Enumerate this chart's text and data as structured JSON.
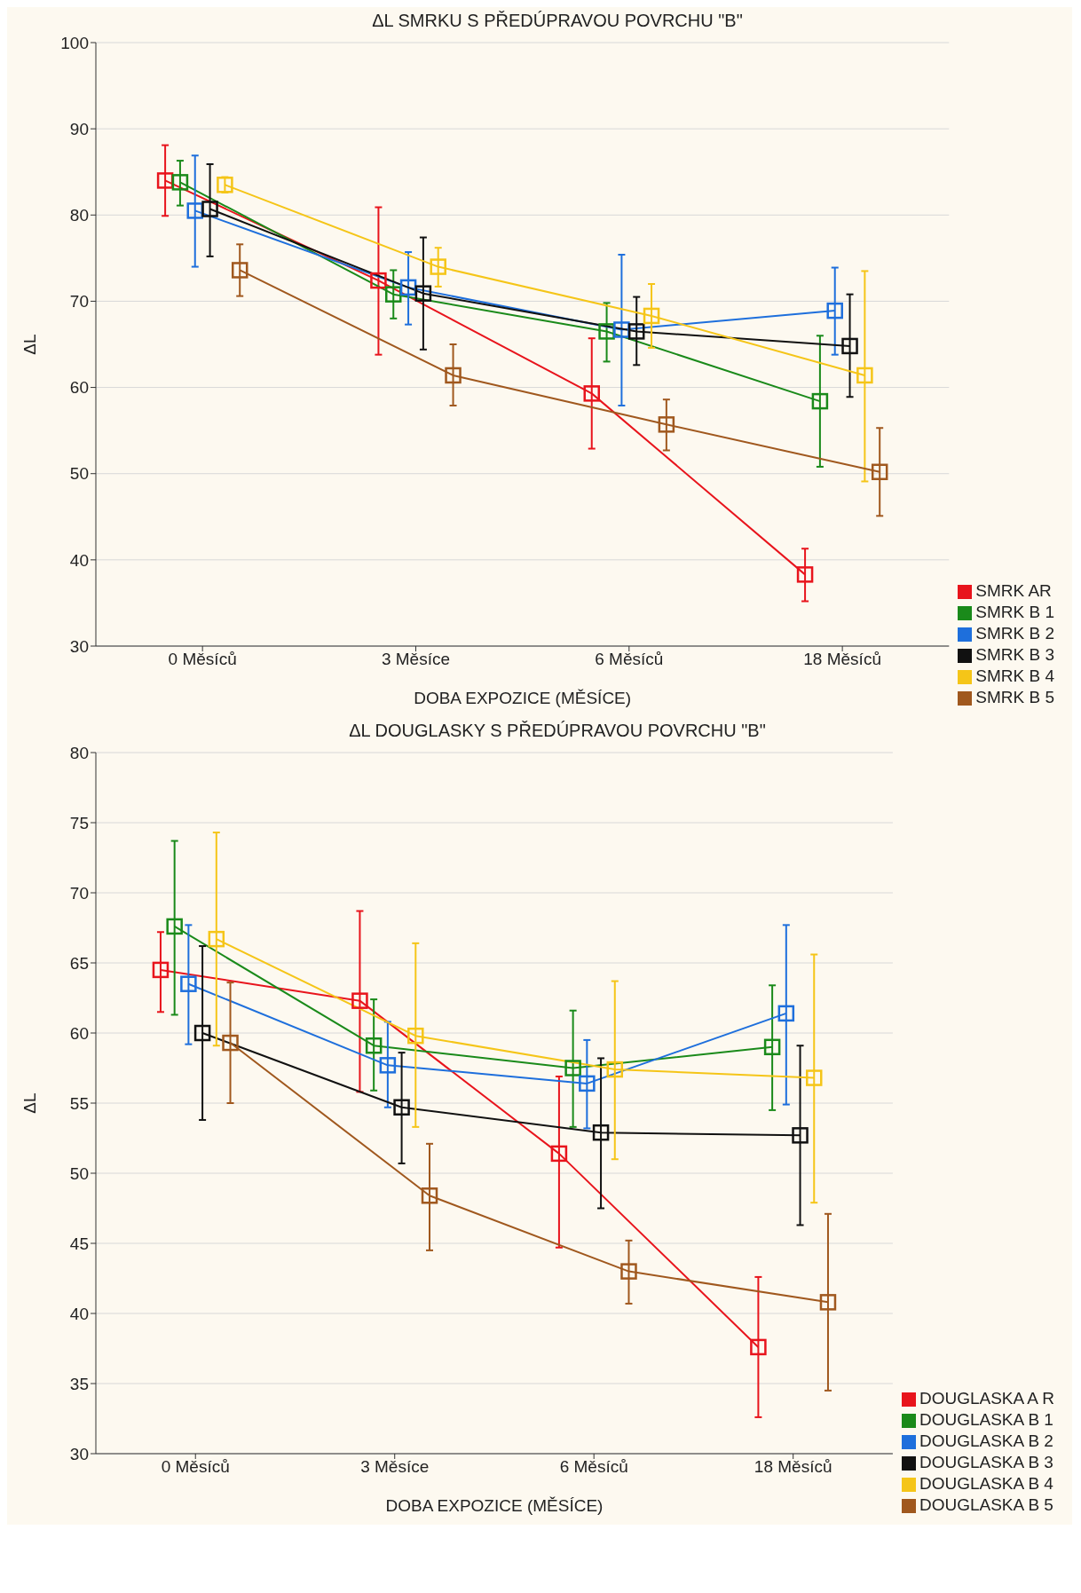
{
  "chart_data": [
    {
      "type": "line",
      "title": "ΔL SMRKU S PŘEDÚPRAVOU POVRCHU \"B\"",
      "xlabel": "DOBA EXPOZICE (MĚSÍCE)",
      "ylabel": "ΔL",
      "categories": [
        "0 Měsíců",
        "3 Měsíce",
        "6 Měsíců",
        "18 Měsíců"
      ],
      "ylim": [
        30,
        100
      ],
      "yticks": [
        30,
        40,
        50,
        60,
        70,
        80,
        90,
        100
      ],
      "grid": "y",
      "legend": "bottom right",
      "marker": "square",
      "series": [
        {
          "name": "SMRK AR",
          "color": "#e8141c",
          "values": [
            84.0,
            72.4,
            59.3,
            38.3
          ],
          "errors": [
            [
              79.9,
              88.1
            ],
            [
              63.8,
              80.9
            ],
            [
              52.9,
              65.7
            ],
            [
              35.2,
              41.3
            ]
          ]
        },
        {
          "name": "SMRK B 1",
          "color": "#1a8a1a",
          "values": [
            83.8,
            70.8,
            66.5,
            58.4
          ],
          "errors": [
            [
              81.1,
              86.3
            ],
            [
              68.0,
              73.6
            ],
            [
              63.0,
              69.8
            ],
            [
              50.8,
              66.0
            ]
          ]
        },
        {
          "name": "SMRK B 2",
          "color": "#1e6fdc",
          "values": [
            80.5,
            71.6,
            66.7,
            68.9
          ],
          "errors": [
            [
              74.0,
              86.9
            ],
            [
              67.3,
              75.7
            ],
            [
              57.9,
              75.4
            ],
            [
              63.8,
              73.9
            ]
          ]
        },
        {
          "name": "SMRK B 3",
          "color": "#111111",
          "values": [
            80.7,
            70.9,
            66.5,
            64.8
          ],
          "errors": [
            [
              75.2,
              85.9
            ],
            [
              64.4,
              77.4
            ],
            [
              62.6,
              70.5
            ],
            [
              58.9,
              70.8
            ]
          ]
        },
        {
          "name": "SMRK B 4",
          "color": "#f5c518",
          "values": [
            83.5,
            74.0,
            68.3,
            61.4
          ],
          "errors": [
            [
              82.6,
              84.4
            ],
            [
              71.7,
              76.2
            ],
            [
              64.6,
              72.0
            ],
            [
              49.1,
              73.5
            ]
          ]
        },
        {
          "name": "SMRK B 5",
          "color": "#a0581e",
          "values": [
            73.6,
            61.4,
            55.7,
            50.2
          ],
          "errors": [
            [
              70.6,
              76.6
            ],
            [
              57.9,
              65.0
            ],
            [
              52.7,
              58.6
            ],
            [
              45.1,
              55.3
            ]
          ]
        }
      ]
    },
    {
      "type": "line",
      "title": "ΔL DOUGLASKY S PŘEDÚPRAVOU POVRCHU \"B\"",
      "xlabel": "DOBA EXPOZICE (MĚSÍCE)",
      "ylabel": "ΔL",
      "categories": [
        "0 Měsíců",
        "3 Měsíce",
        "6 Měsíců",
        "18 Měsíců"
      ],
      "ylim": [
        30,
        80
      ],
      "yticks": [
        30,
        35,
        40,
        45,
        50,
        55,
        60,
        65,
        70,
        75,
        80
      ],
      "grid": "y",
      "legend": "bottom right",
      "marker": "square",
      "series": [
        {
          "name": "DOUGLASKA A R",
          "color": "#e8141c",
          "values": [
            64.5,
            62.3,
            51.4,
            37.6
          ],
          "errors": [
            [
              61.5,
              67.2
            ],
            [
              55.8,
              68.7
            ],
            [
              44.7,
              56.9
            ],
            [
              32.6,
              42.6
            ]
          ]
        },
        {
          "name": "DOUGLASKA B 1",
          "color": "#1a8a1a",
          "values": [
            67.6,
            59.1,
            57.5,
            59.0
          ],
          "errors": [
            [
              61.3,
              73.7
            ],
            [
              55.9,
              62.4
            ],
            [
              53.3,
              61.6
            ],
            [
              54.5,
              63.4
            ]
          ]
        },
        {
          "name": "DOUGLASKA B 2",
          "color": "#1e6fdc",
          "values": [
            63.5,
            57.7,
            56.4,
            61.4
          ],
          "errors": [
            [
              59.2,
              67.7
            ],
            [
              54.7,
              60.8
            ],
            [
              53.2,
              59.5
            ],
            [
              54.9,
              67.7
            ]
          ]
        },
        {
          "name": "DOUGLASKA B 3",
          "color": "#111111",
          "values": [
            60.0,
            54.7,
            52.9,
            52.7
          ],
          "errors": [
            [
              53.8,
              66.2
            ],
            [
              50.7,
              58.6
            ],
            [
              47.5,
              58.2
            ],
            [
              46.3,
              59.1
            ]
          ]
        },
        {
          "name": "DOUGLASKA B 4",
          "color": "#f5c518",
          "values": [
            66.7,
            59.8,
            57.4,
            56.8
          ],
          "errors": [
            [
              59.1,
              74.3
            ],
            [
              53.3,
              66.4
            ],
            [
              51.0,
              63.7
            ],
            [
              47.9,
              65.6
            ]
          ]
        },
        {
          "name": "DOUGLASKA B 5",
          "color": "#a0581e",
          "values": [
            59.3,
            48.4,
            43.0,
            40.8
          ],
          "errors": [
            [
              55.0,
              63.6
            ],
            [
              44.5,
              52.1
            ],
            [
              40.7,
              45.2
            ],
            [
              34.5,
              47.1
            ]
          ]
        }
      ]
    }
  ]
}
